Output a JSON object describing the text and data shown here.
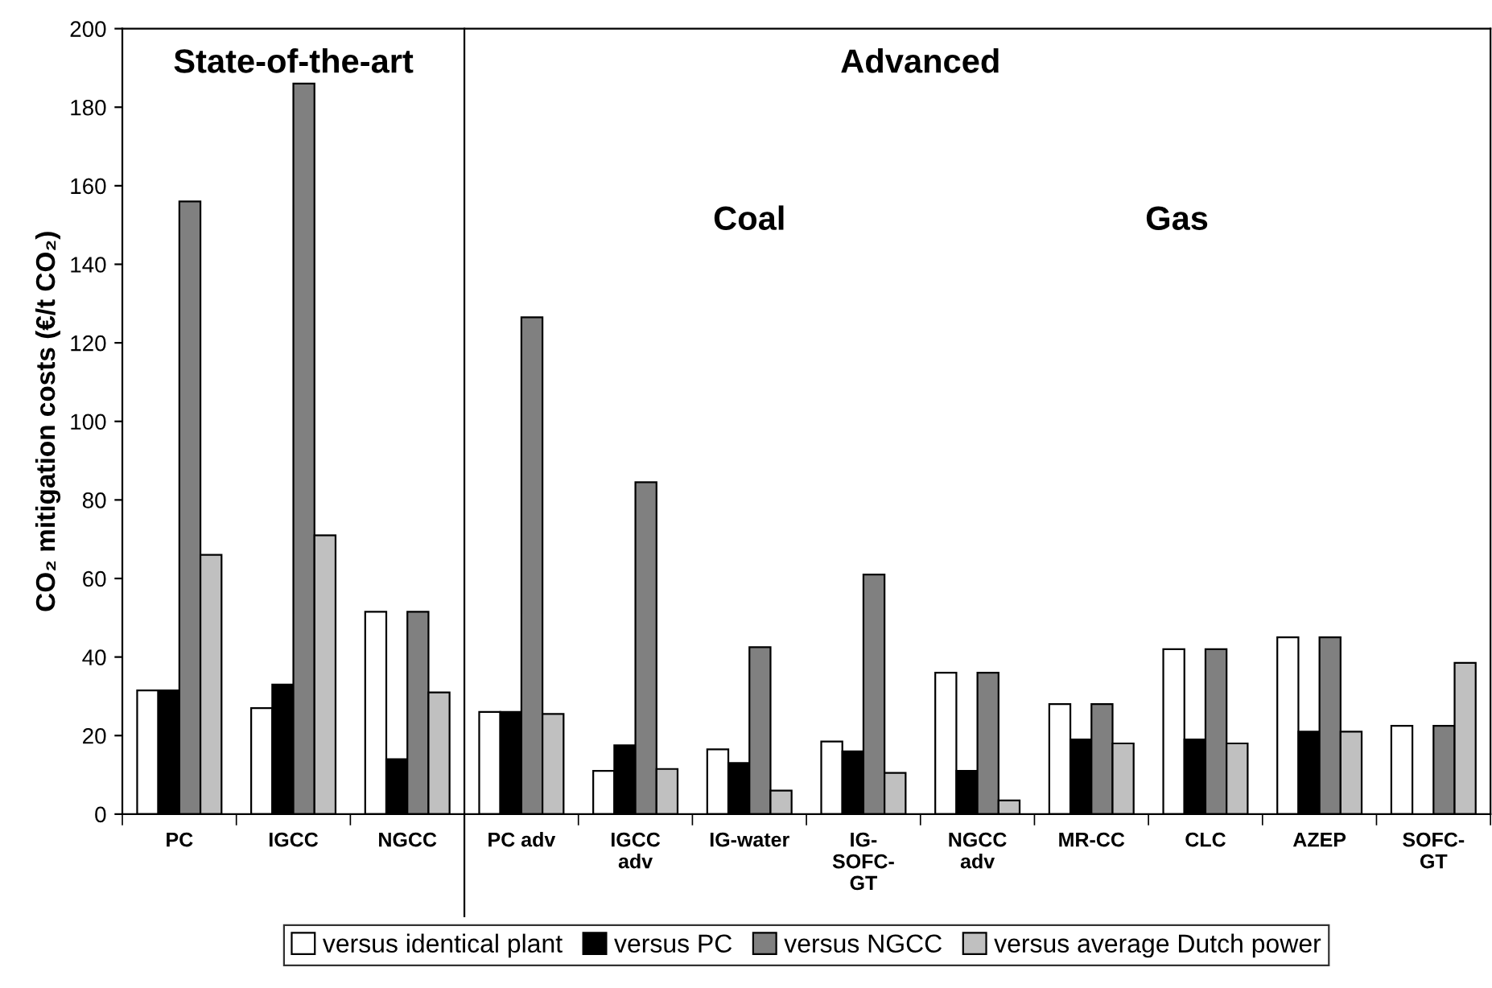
{
  "chart_data": {
    "type": "bar",
    "ylabel": "CO₂ mitigation costs (€/t CO₂)",
    "categories": [
      "PC",
      "IGCC",
      "NGCC",
      "PC adv",
      "IGCC\nadv",
      "IG-water",
      "IG-\nSOFC-\nGT",
      "NGCC\nadv",
      "MR-CC",
      "CLC",
      "AZEP",
      "SOFC-\nGT"
    ],
    "series": [
      {
        "name": "versus identical plant",
        "color": "#ffffff",
        "values": [
          31.5,
          27,
          51.5,
          26,
          11,
          16.5,
          18.5,
          36,
          28,
          42,
          45,
          22.5
        ]
      },
      {
        "name": "versus PC",
        "color": "#000000",
        "values": [
          31.5,
          33,
          14,
          26,
          17.5,
          13,
          16,
          11,
          19,
          19,
          21,
          null
        ]
      },
      {
        "name": "versus NGCC",
        "color": "#808080",
        "values": [
          156,
          186,
          51.5,
          126.5,
          84.5,
          42.5,
          61,
          36,
          28,
          42,
          45,
          22.5
        ]
      },
      {
        "name": "versus average Dutch power",
        "color": "#c0c0c0",
        "values": [
          66,
          71,
          31,
          25.5,
          11.5,
          6,
          10.5,
          3.5,
          18,
          18,
          21,
          38.5
        ]
      }
    ],
    "ylim": [
      0,
      200
    ],
    "yticks": [
      0,
      20,
      40,
      60,
      80,
      100,
      120,
      140,
      160,
      180,
      200
    ],
    "annotations": [
      "State-of-the-art",
      "Advanced",
      "Coal",
      "Gas"
    ],
    "legend": "bottom",
    "grid": false
  }
}
